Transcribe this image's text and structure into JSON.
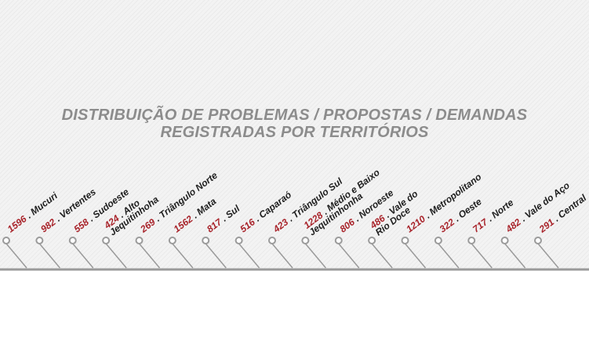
{
  "chart_data": {
    "type": "table",
    "title_lines": [
      "DISTRIBUIÇÃO DE PROBLEMAS / PROPOSTAS / DEMANDAS",
      "REGISTRADAS POR TERRITÓRIOS"
    ],
    "separator": " . ",
    "items": [
      {
        "value": "1596",
        "name": [
          "Mucuri"
        ]
      },
      {
        "value": "982",
        "name": [
          "Vertentes"
        ]
      },
      {
        "value": "558",
        "name": [
          "Sudoeste"
        ]
      },
      {
        "value": "424",
        "name": [
          "Alto",
          "Jequitinhoha"
        ]
      },
      {
        "value": "269",
        "name": [
          "Triângulo Norte"
        ]
      },
      {
        "value": "1562",
        "name": [
          "Mata"
        ]
      },
      {
        "value": "817",
        "name": [
          "Sul"
        ]
      },
      {
        "value": "516",
        "name": [
          "Caparaó"
        ]
      },
      {
        "value": "423",
        "name": [
          "Triângulo Sul"
        ]
      },
      {
        "value": "1228",
        "name": [
          "Médio e Baixo",
          "Jequitinhonha"
        ]
      },
      {
        "value": "806",
        "name": [
          "Noroeste"
        ]
      },
      {
        "value": "486",
        "name": [
          "Vale do",
          "Rio Doce"
        ]
      },
      {
        "value": "1210",
        "name": [
          "Metropolitano"
        ]
      },
      {
        "value": "322",
        "name": [
          "Oeste"
        ]
      },
      {
        "value": "717",
        "name": [
          "Norte"
        ]
      },
      {
        "value": "482",
        "name": [
          "Vale do Aço"
        ]
      },
      {
        "value": "291",
        "name": [
          "Central"
        ]
      }
    ]
  },
  "colors": {
    "value": "#a8232a",
    "name": "#1e1e1e",
    "title": "#8c8c8c",
    "baseline": "#9a9a9a",
    "pin": "#9a9a9a"
  }
}
